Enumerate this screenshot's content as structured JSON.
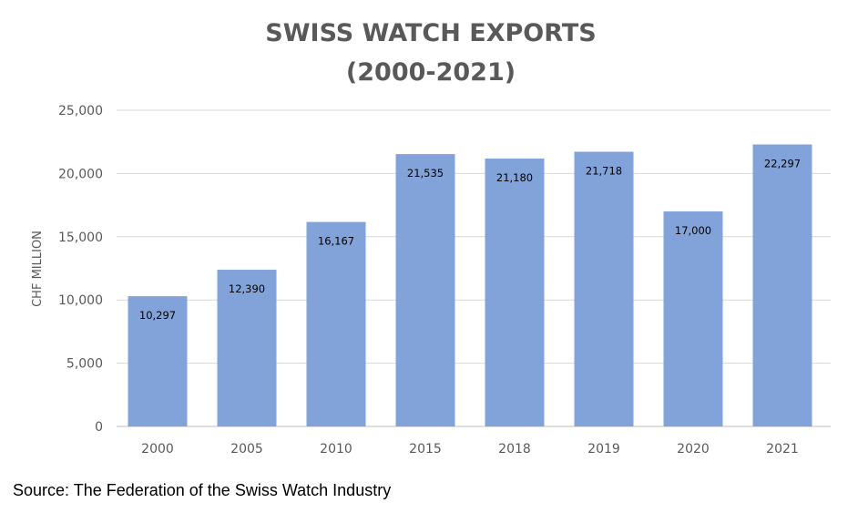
{
  "chart_data": {
    "type": "bar",
    "title_line1": "SWISS WATCH EXPORTS",
    "title_line2": "(2000-2021)",
    "xlabel": "",
    "ylabel": "CHF MILLION",
    "categories": [
      "2000",
      "2005",
      "2010",
      "2015",
      "2018",
      "2019",
      "2020",
      "2021"
    ],
    "values": [
      10297,
      12390,
      16167,
      21535,
      21180,
      21718,
      17000,
      22297
    ],
    "data_labels": [
      "10,297",
      "12,390",
      "16,167",
      "21,535",
      "21,180",
      "21,718",
      "17,000",
      "22,297"
    ],
    "ylim": [
      0,
      25000
    ],
    "yticks": [
      0,
      5000,
      10000,
      15000,
      20000,
      25000
    ],
    "ytick_labels": [
      "0",
      "5,000",
      "10,000",
      "15,000",
      "20,000",
      "25,000"
    ],
    "grid": true,
    "bar_color": "#7b9ed7"
  },
  "source": "Source: The Federation of the Swiss Watch Industry"
}
